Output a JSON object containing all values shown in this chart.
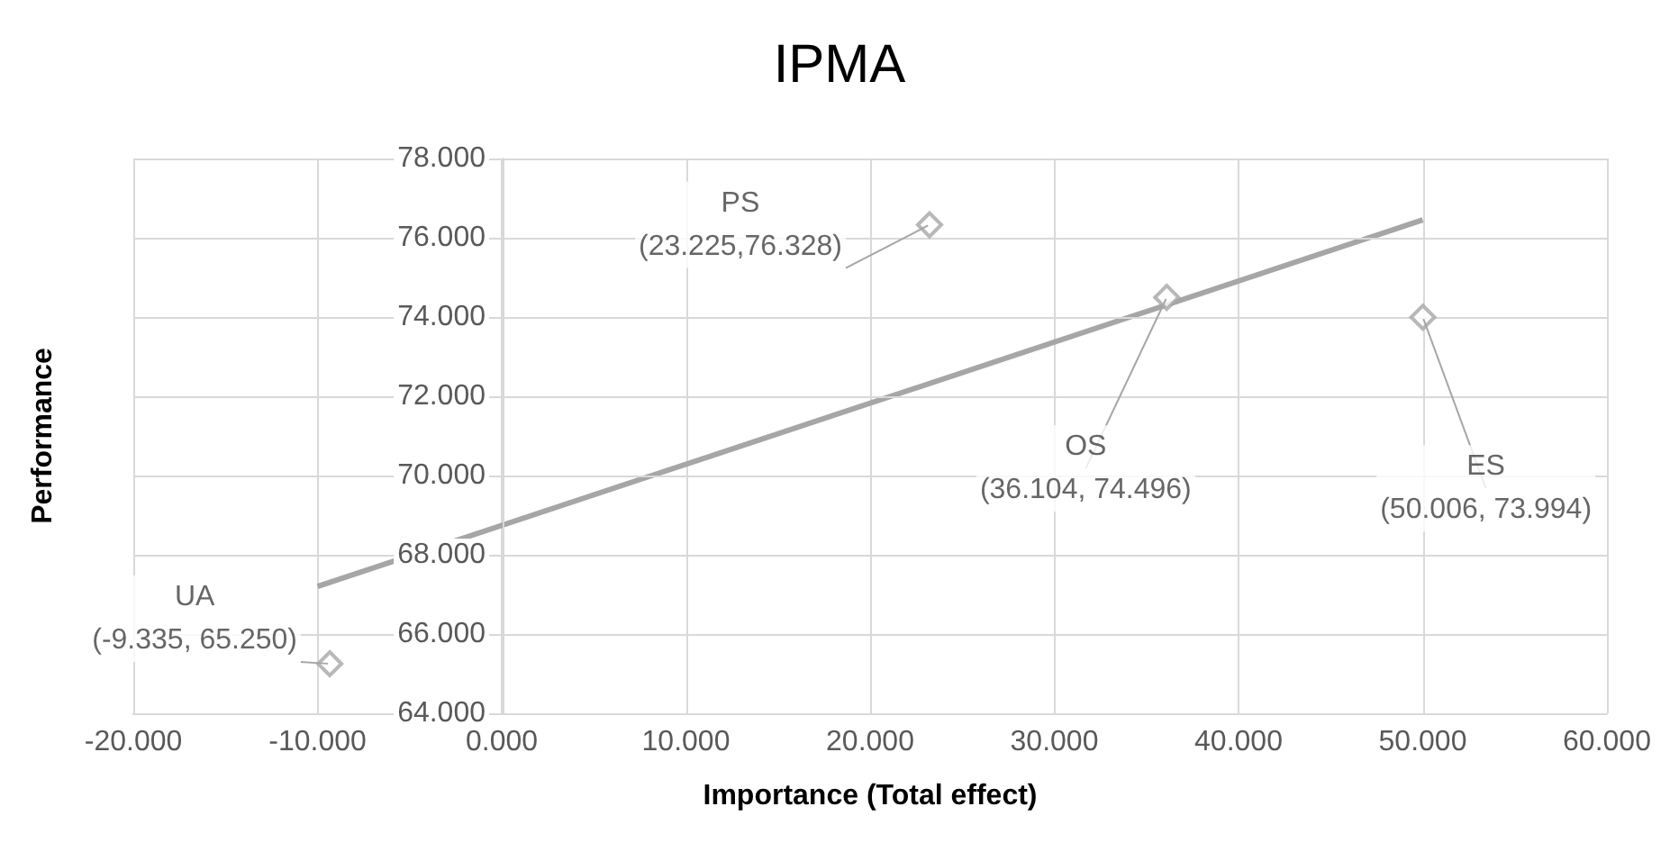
{
  "chart_data": {
    "type": "scatter",
    "title": "IPMA",
    "xlabel": "Importance (Total effect)",
    "ylabel": "Performance",
    "series": [
      {
        "type": "scatter",
        "color": "#a6a6a6",
        "x": [
          -9.335,
          23.225,
          36.104,
          50.006
        ],
        "values": [
          65.25,
          76.328,
          74.496,
          73.994
        ],
        "marker": "diamond"
      },
      {
        "type": "line",
        "color": "#a6a6a6",
        "x": [
          -10,
          50
        ],
        "values": [
          67.2,
          76.45
        ],
        "marker": "none"
      }
    ],
    "annotations": [
      {
        "text": "UA\n(-9.335, 65.250)",
        "x": -9.335,
        "y": 65.25
      },
      {
        "text": "PS\n(23.225,76.328)",
        "x": 23.225,
        "y": 76.328
      },
      {
        "text": "OS\n(36.104, 74.496)",
        "x": 36.104,
        "y": 74.496
      },
      {
        "text": "ES\n(50.006, 73.994)",
        "x": 50.006,
        "y": 73.994
      }
    ],
    "xlim": [
      -20,
      60
    ],
    "xticks": [
      {
        "value": -20,
        "label": "-20.000"
      },
      {
        "value": -10,
        "label": "-10.000"
      },
      {
        "value": 0,
        "label": "0.000"
      },
      {
        "value": 10,
        "label": "10.000"
      },
      {
        "value": 20,
        "label": "20.000"
      },
      {
        "value": 30,
        "label": "30.000"
      },
      {
        "value": 40,
        "label": "40.000"
      },
      {
        "value": 50,
        "label": "50.000"
      },
      {
        "value": 60,
        "label": "60.000"
      }
    ],
    "ylim": [
      64,
      78
    ],
    "yticks": [
      {
        "value": 64,
        "label": "64.000"
      },
      {
        "value": 66,
        "label": "66.000"
      },
      {
        "value": 68,
        "label": "68.000"
      },
      {
        "value": 70,
        "label": "70.000"
      },
      {
        "value": 72,
        "label": "72.000"
      },
      {
        "value": 74,
        "label": "74.000"
      },
      {
        "value": 76,
        "label": "76.000"
      },
      {
        "value": 78,
        "label": "78.000"
      }
    ],
    "grid": true
  }
}
